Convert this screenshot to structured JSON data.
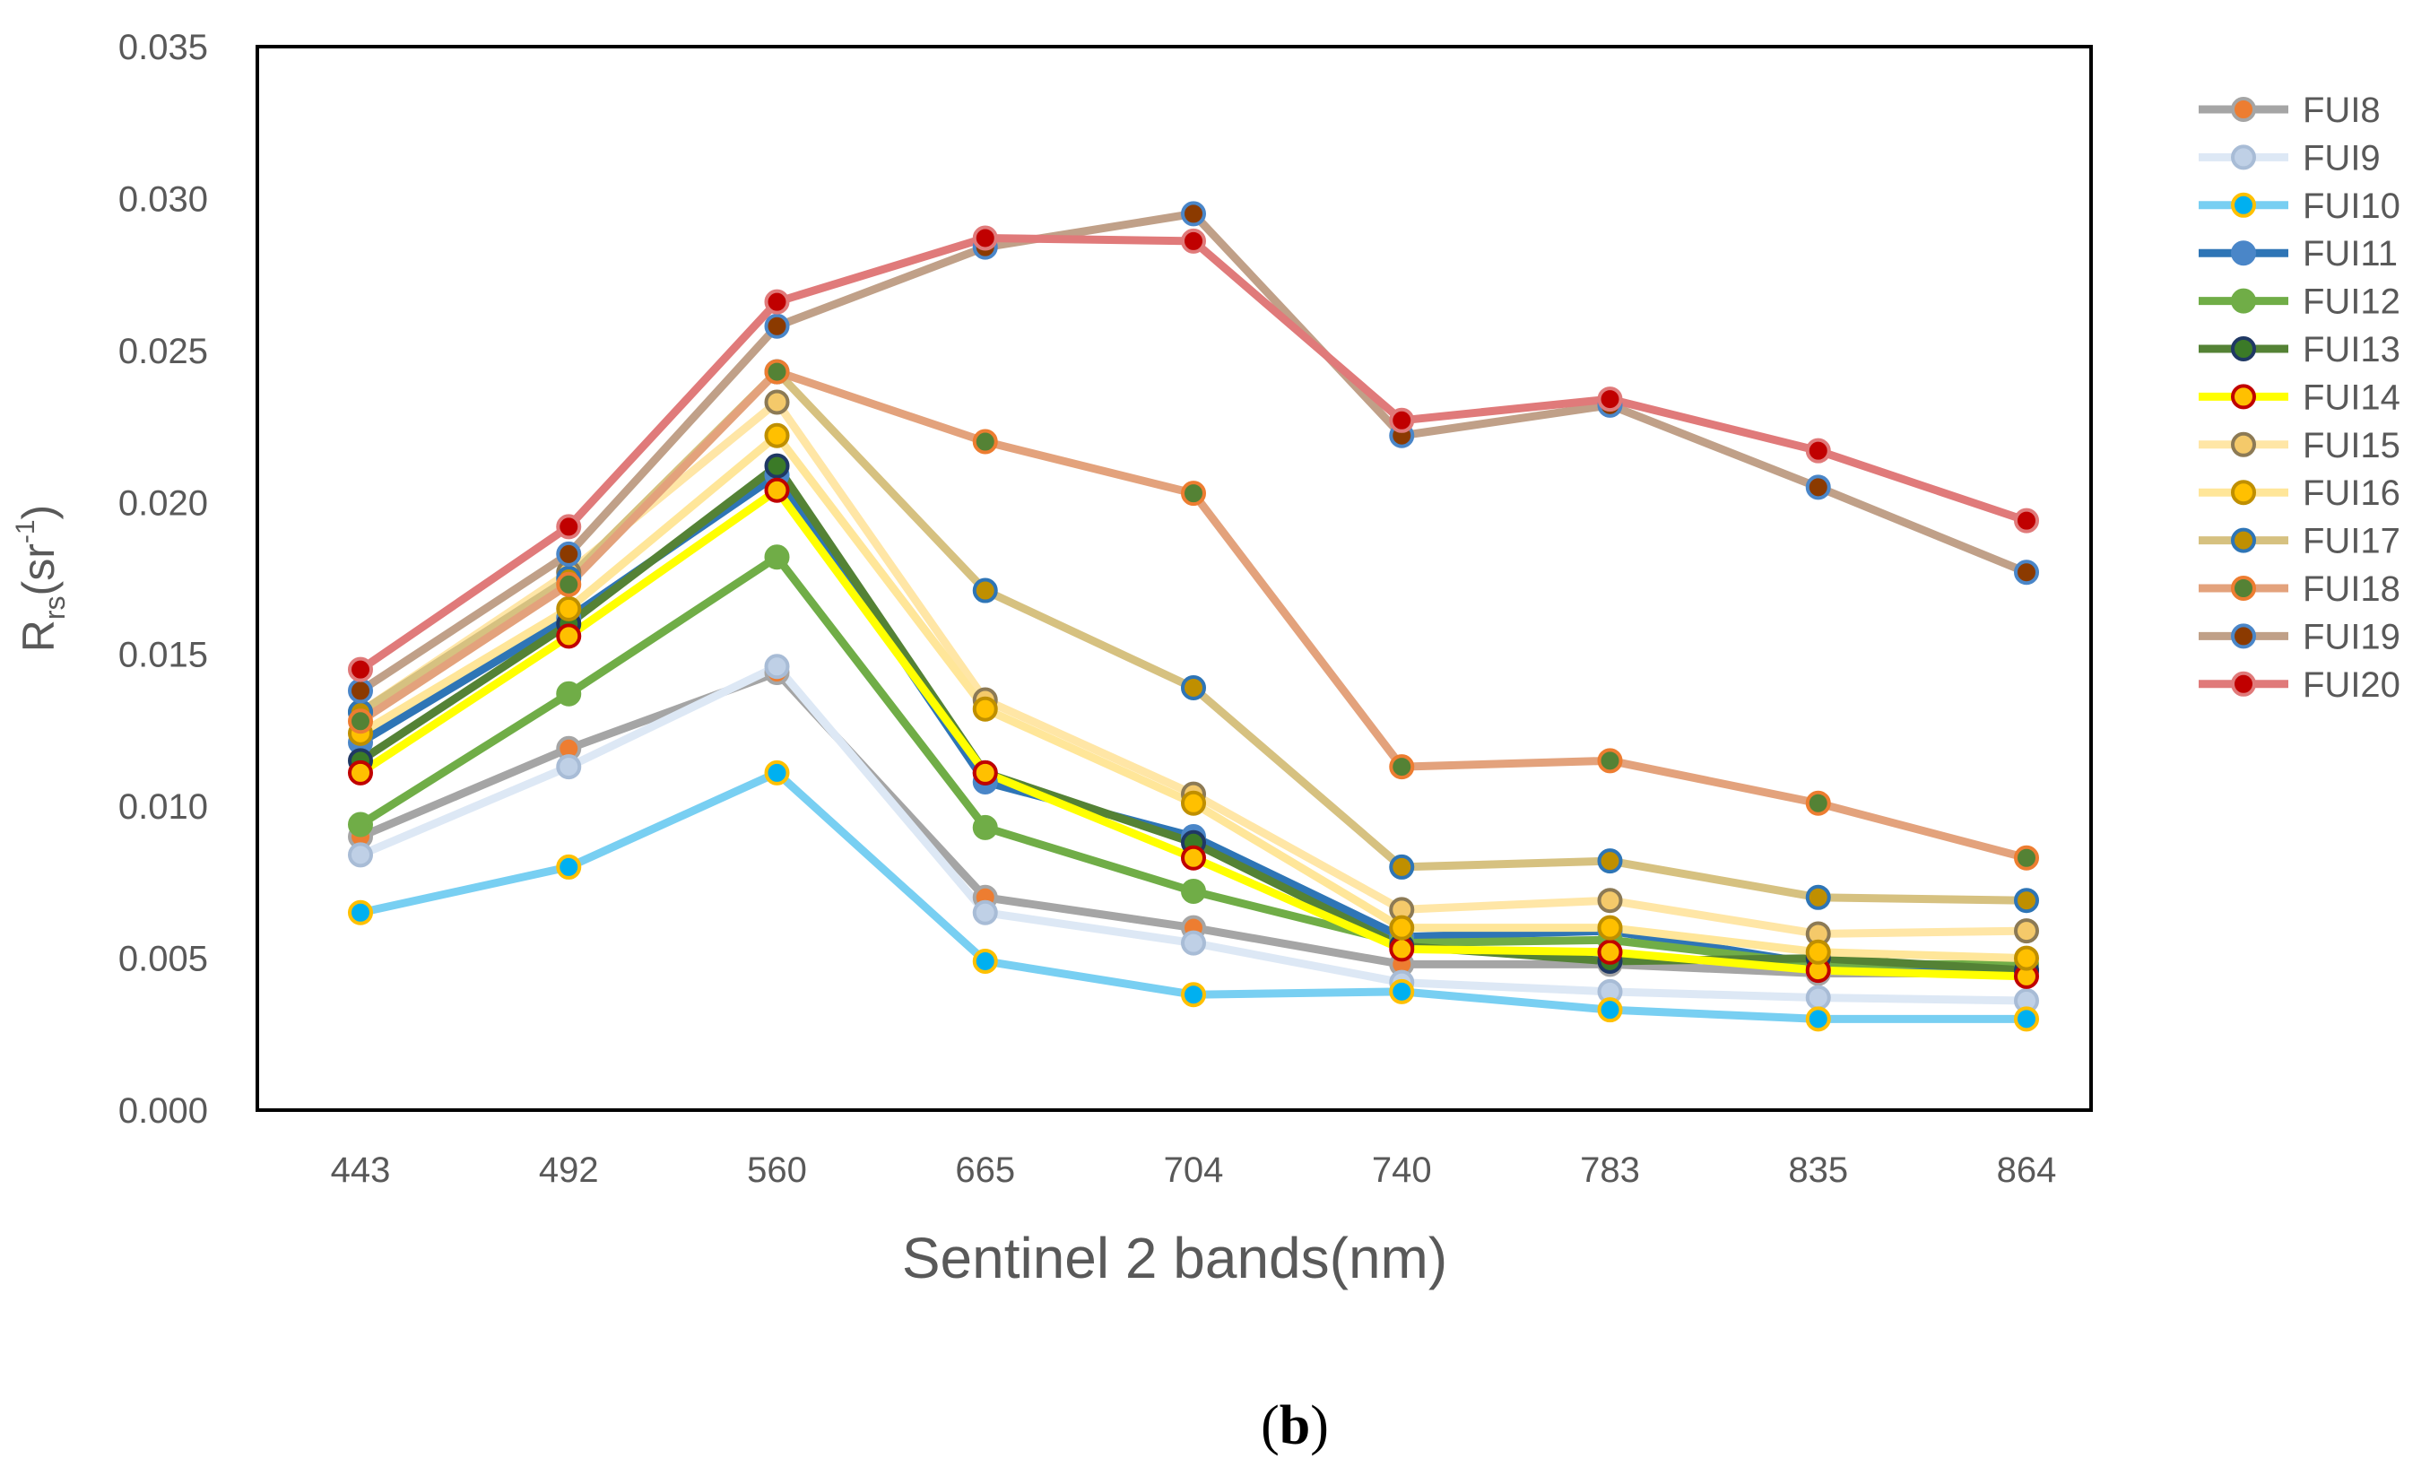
{
  "chart_data": {
    "type": "line",
    "title": "",
    "xlabel": "Sentinel 2 bands(nm)",
    "ylabel": {
      "base": "R",
      "sub": "rs",
      "unit_open": "(sr",
      "sup": "-1",
      "unit_close": ")"
    },
    "categories": [
      "443",
      "492",
      "560",
      "665",
      "704",
      "740",
      "783",
      "835",
      "864"
    ],
    "yticks": [
      "0.000",
      "0.005",
      "0.010",
      "0.015",
      "0.020",
      "0.025",
      "0.030",
      "0.035"
    ],
    "ylim": [
      0,
      0.035
    ],
    "grid": false,
    "legend_position": "right",
    "series": [
      {
        "name": "FUI8",
        "line": "#a5a5a5",
        "fill": "#ed7d31",
        "edge": "#a5a5a5",
        "values": [
          0.009,
          0.0119,
          0.0144,
          0.007,
          0.006,
          0.0048,
          0.0048,
          0.0045,
          0.0045
        ]
      },
      {
        "name": "FUI9",
        "line": "#dde8f5",
        "fill": "#bfd0e6",
        "edge": "#a8bcd6",
        "values": [
          0.0084,
          0.0113,
          0.0146,
          0.0065,
          0.0055,
          0.0042,
          0.0039,
          0.0037,
          0.0036
        ]
      },
      {
        "name": "FUI10",
        "line": "#78cff2",
        "fill": "#00b0f0",
        "edge": "#ffc000",
        "values": [
          0.0065,
          0.008,
          0.0111,
          0.0049,
          0.0038,
          0.0039,
          0.0033,
          0.003,
          0.003
        ]
      },
      {
        "name": "FUI11",
        "line": "#2e75b6",
        "fill": "#4a86c8",
        "edge": "#4a86c8",
        "values": [
          0.0121,
          0.0162,
          0.0209,
          0.0108,
          0.009,
          0.0057,
          0.0059,
          0.0048,
          0.0046
        ]
      },
      {
        "name": "FUI12",
        "line": "#70ad47",
        "fill": "#70ad47",
        "edge": "#70ad47",
        "values": [
          0.0094,
          0.0137,
          0.0182,
          0.0093,
          0.0072,
          0.0055,
          0.0056,
          0.0048,
          0.0048
        ]
      },
      {
        "name": "FUI13",
        "line": "#548235",
        "fill": "#3b7a27",
        "edge": "#1f3864",
        "values": [
          0.0115,
          0.016,
          0.0212,
          0.0111,
          0.0088,
          0.0054,
          0.0049,
          0.005,
          0.0046
        ]
      },
      {
        "name": "FUI14",
        "line": "#ffff00",
        "fill": "#ffc000",
        "edge": "#c00000",
        "values": [
          0.0111,
          0.0156,
          0.0204,
          0.0111,
          0.0083,
          0.0053,
          0.0052,
          0.0046,
          0.0044
        ]
      },
      {
        "name": "FUI15",
        "line": "#ffe6a6",
        "fill": "#f4c96a",
        "edge": "#8c7a55",
        "values": [
          0.0131,
          0.0177,
          0.0233,
          0.0135,
          0.0104,
          0.0066,
          0.0069,
          0.0058,
          0.0059
        ]
      },
      {
        "name": "FUI16",
        "line": "#ffe699",
        "fill": "#ffc000",
        "edge": "#bf8f00",
        "values": [
          0.0124,
          0.0165,
          0.0222,
          0.0132,
          0.0101,
          0.006,
          0.006,
          0.0052,
          0.005
        ]
      },
      {
        "name": "FUI17",
        "line": "#d6c180",
        "fill": "#bf8f00",
        "edge": "#2e75b6",
        "values": [
          0.0131,
          0.0175,
          0.0243,
          0.0171,
          0.0139,
          0.008,
          0.0082,
          0.007,
          0.0069
        ]
      },
      {
        "name": "FUI18",
        "line": "#e3a27c",
        "fill": "#548235",
        "edge": "#ed7d31",
        "values": [
          0.0128,
          0.0173,
          0.0243,
          0.022,
          0.0203,
          0.0113,
          0.0115,
          0.0101,
          0.0083
        ]
      },
      {
        "name": "FUI19",
        "line": "#c0a088",
        "fill": "#8b3a00",
        "edge": "#4a86c8",
        "values": [
          0.0138,
          0.0183,
          0.0258,
          0.0284,
          0.0295,
          0.0222,
          0.0232,
          0.0205,
          0.0177
        ]
      },
      {
        "name": "FUI20",
        "line": "#e07a7a",
        "fill": "#c00000",
        "edge": "#e07a7a",
        "values": [
          0.0145,
          0.0192,
          0.0266,
          0.0287,
          0.0286,
          0.0227,
          0.0234,
          0.0217,
          0.0194
        ]
      }
    ],
    "caption": "(b)"
  }
}
